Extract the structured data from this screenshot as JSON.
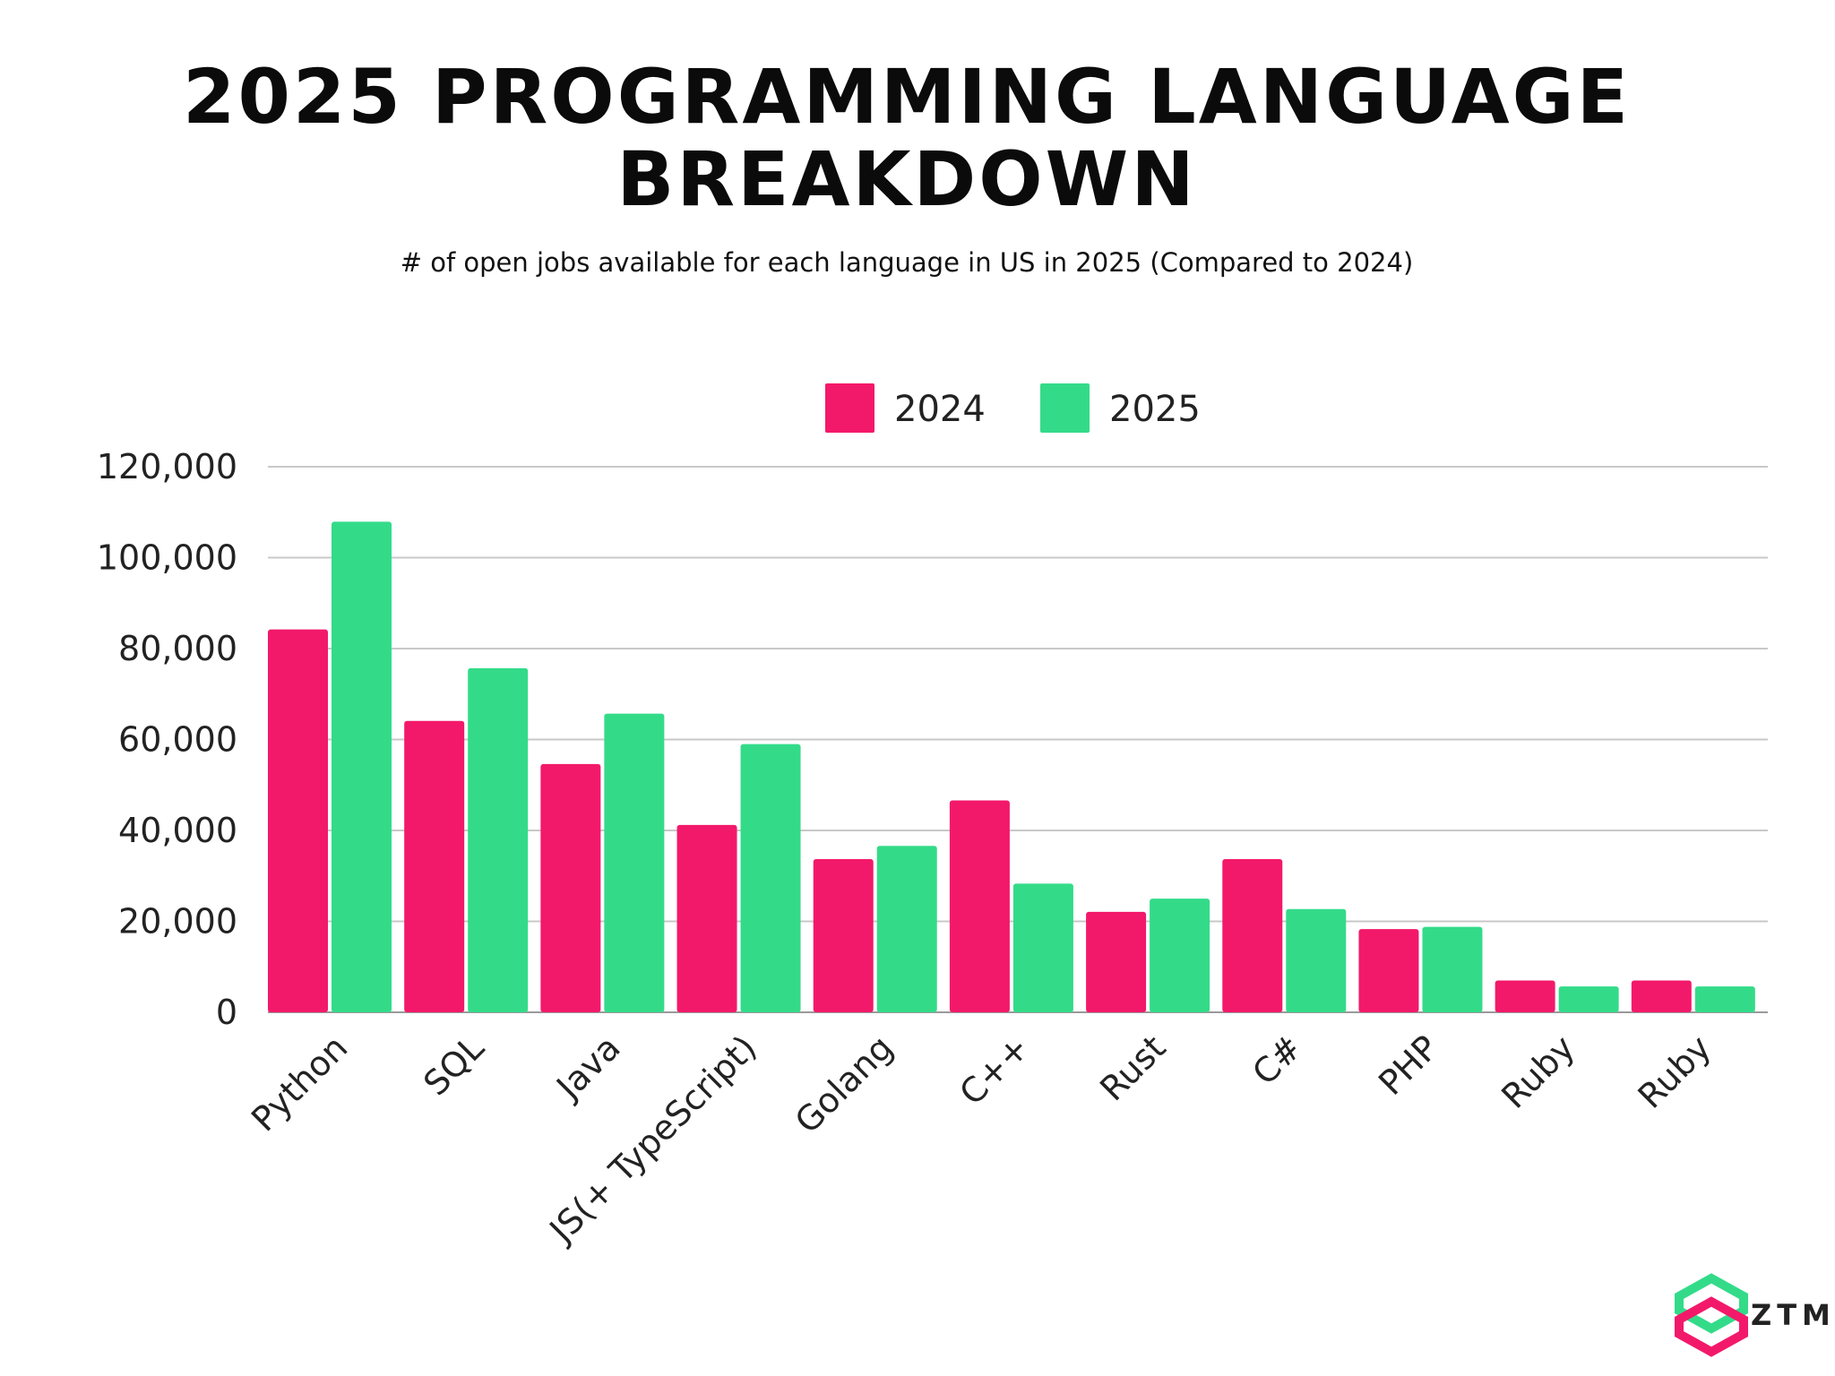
{
  "chart_data": {
    "type": "bar",
    "title": "2025 PROGRAMMING LANGUAGE BREAKDOWN",
    "subtitle": "# of open jobs available for each language in US in 2025 (Compared to 2024)",
    "categories": [
      "Python",
      "SQL",
      "Java",
      "JS(+ TypeScript)",
      "Golang",
      "C++",
      "Rust",
      "C#",
      "PHP",
      "Ruby",
      "Ruby"
    ],
    "series": [
      {
        "name": "2024",
        "color": "#F3196A",
        "values": [
          84200,
          64100,
          54600,
          41200,
          33700,
          46600,
          22100,
          33700,
          18300,
          7000,
          7000
        ]
      },
      {
        "name": "2025",
        "color": "#33DB89",
        "values": [
          107900,
          75700,
          65700,
          59000,
          36600,
          28300,
          25000,
          22700,
          18800,
          5700,
          5700
        ]
      }
    ],
    "ylim": [
      0,
      120000
    ],
    "yticks": [
      0,
      20000,
      40000,
      60000,
      80000,
      100000,
      120000
    ],
    "ytick_labels": [
      "0",
      "20,000",
      "40,000",
      "60,000",
      "80,000",
      "100,000",
      "120,000"
    ],
    "grid": true,
    "legend": "top-center",
    "xlabel": "",
    "ylabel": ""
  },
  "logo": {
    "text": "ZTM"
  }
}
